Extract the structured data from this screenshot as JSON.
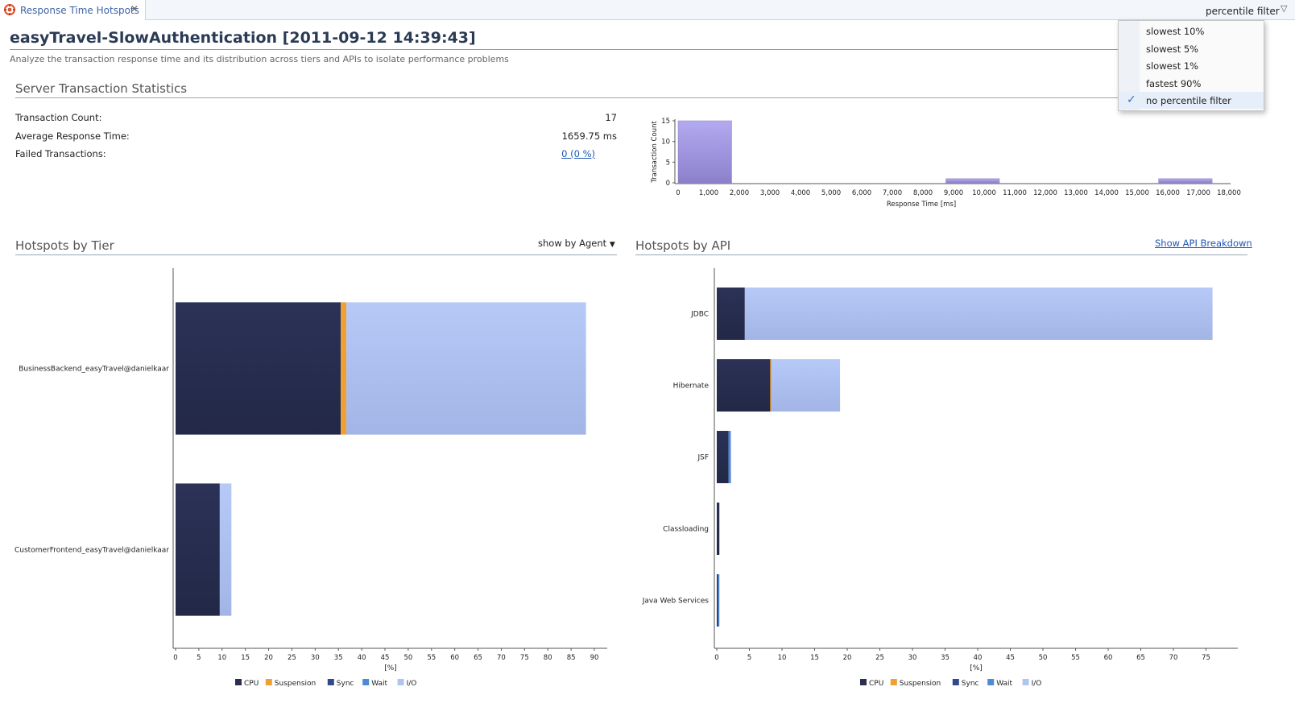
{
  "tab": {
    "label": "Response Time Hotspots",
    "close": "✕"
  },
  "percentile_filter": {
    "label": "percentile filter",
    "arrow": "▽",
    "options": [
      {
        "label": "slowest 10%",
        "checked": false
      },
      {
        "label": "slowest 5%",
        "checked": false
      },
      {
        "label": "slowest 1%",
        "checked": false
      },
      {
        "label": "fastest 90%",
        "checked": false
      },
      {
        "label": "no percentile filter",
        "checked": true
      }
    ],
    "check_glyph": "✓"
  },
  "header": {
    "title": "easyTravel-SlowAuthentication [2011-09-12 14:39:43]",
    "subtitle": "Analyze the transaction response time and its distribution across tiers and APIs to isolate performance problems"
  },
  "stats": {
    "section_title": "Server Transaction Statistics",
    "transaction_count_label": "Transaction Count:",
    "transaction_count_value": "17",
    "avg_response_label": "Average Response Time:",
    "avg_response_value": "1659.75 ms",
    "failed_label": "Failed Transactions:",
    "failed_value": "0 (0 %)"
  },
  "tier": {
    "section_title": "Hotspots by Tier",
    "show_by": "show by Agent"
  },
  "api": {
    "section_title": "Hotspots by API",
    "breakdown_link": "Show API Breakdown"
  },
  "colors": {
    "cpu": "#2a2f52",
    "suspension": "#f0a030",
    "sync": "#2f4a8c",
    "wait": "#4d8ad6",
    "io": "#b0c4f2",
    "histogram": "#9e94de"
  },
  "chart_data": [
    {
      "type": "bar",
      "name": "histogram",
      "xlabel": "Response Time [ms]",
      "ylabel": "Transaction Count",
      "xlim": [
        0,
        18000
      ],
      "ylim": [
        0,
        15
      ],
      "xticks": [
        "0",
        "1,000",
        "2,000",
        "3,000",
        "4,000",
        "5,000",
        "6,000",
        "7,000",
        "8,000",
        "9,000",
        "10,000",
        "11,000",
        "12,000",
        "13,000",
        "14,000",
        "15,000",
        "16,000",
        "17,000",
        "18,000"
      ],
      "yticks": [
        "0",
        "5",
        "10",
        "15"
      ],
      "bins": [
        {
          "from": 0,
          "to": 1750,
          "count": 15
        },
        {
          "from": 8750,
          "to": 10500,
          "count": 1
        },
        {
          "from": 15700,
          "to": 17450,
          "count": 1
        }
      ]
    },
    {
      "type": "bar",
      "name": "hotspots-by-tier",
      "orientation": "horizontal",
      "stacked": true,
      "xlabel": "[%]",
      "xlim": [
        0,
        90
      ],
      "xticks": [
        "0",
        "5",
        "10",
        "15",
        "20",
        "25",
        "30",
        "35",
        "40",
        "45",
        "50",
        "55",
        "60",
        "65",
        "70",
        "75",
        "80",
        "85",
        "90"
      ],
      "categories": [
        "BusinessBackend_easyTravel@danielkaar",
        "CustomerFrontend_easyTravel@danielkaar"
      ],
      "series": [
        {
          "name": "CPU",
          "values": [
            35.5,
            9.5
          ]
        },
        {
          "name": "Suspension",
          "values": [
            1.2,
            0
          ]
        },
        {
          "name": "Sync",
          "values": [
            0,
            0
          ]
        },
        {
          "name": "Wait",
          "values": [
            0,
            0
          ]
        },
        {
          "name": "I/O",
          "values": [
            51.5,
            2.5
          ]
        }
      ]
    },
    {
      "type": "bar",
      "name": "hotspots-by-api",
      "orientation": "horizontal",
      "stacked": true,
      "xlabel": "[%]",
      "xlim": [
        0,
        80
      ],
      "xticks": [
        "0",
        "5",
        "10",
        "15",
        "20",
        "25",
        "30",
        "35",
        "40",
        "45",
        "50",
        "55",
        "60",
        "65",
        "70",
        "75"
      ],
      "categories": [
        "JDBC",
        "Hibernate",
        "JSF",
        "Classloading",
        "Java Web Services"
      ],
      "series": [
        {
          "name": "CPU",
          "values": [
            4.3,
            8.2,
            1.8,
            0.4,
            0.2
          ]
        },
        {
          "name": "Suspension",
          "values": [
            0,
            0.2,
            0,
            0,
            0
          ]
        },
        {
          "name": "Sync",
          "values": [
            0,
            0,
            0,
            0,
            0
          ]
        },
        {
          "name": "Wait",
          "values": [
            0,
            0,
            0.3,
            0,
            0.2
          ]
        },
        {
          "name": "I/O",
          "values": [
            71.7,
            10.5,
            0.1,
            0,
            0
          ]
        }
      ]
    }
  ],
  "legend": [
    "CPU",
    "Suspension",
    "Sync",
    "Wait",
    "I/O"
  ]
}
